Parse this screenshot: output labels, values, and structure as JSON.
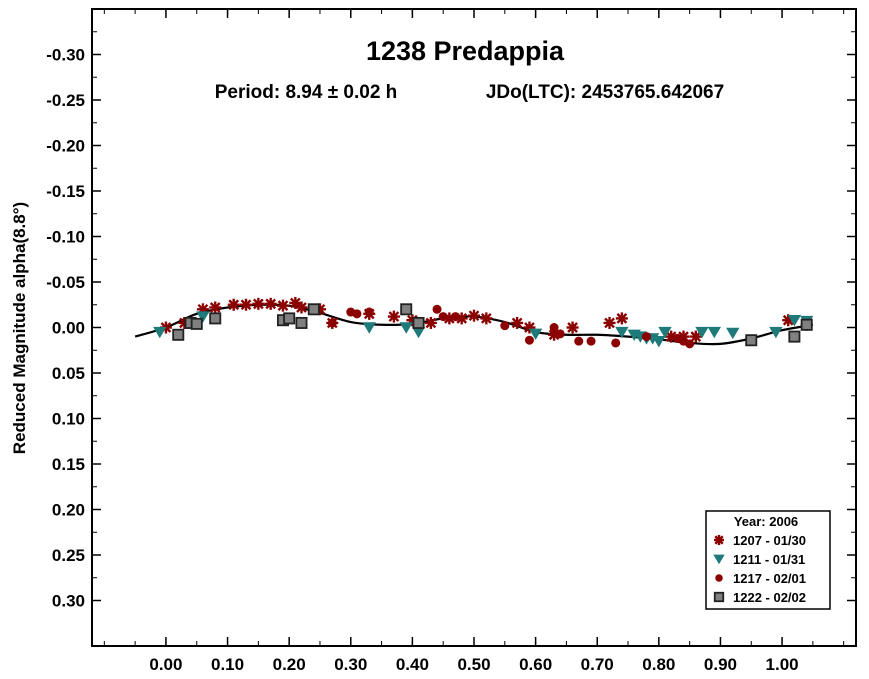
{
  "chart_data": {
    "type": "scatter",
    "title": "1238 Predappia",
    "subtitle_period": "Period: 8.94 ± 0.02 h",
    "subtitle_epoch": "JDo(LTC): 2453765.642067",
    "xlabel": "",
    "ylabel": "Reduced Magnitude alpha(8.8°)",
    "xlim": [
      -0.12,
      1.12
    ],
    "ylim": [
      0.35,
      -0.35
    ],
    "y_inverted": true,
    "x_ticks": [
      "0.00",
      "0.10",
      "0.20",
      "0.30",
      "0.40",
      "0.50",
      "0.60",
      "0.70",
      "0.80",
      "0.90",
      "1.00"
    ],
    "y_ticks": [
      "-0.30",
      "-0.25",
      "-0.20",
      "-0.15",
      "-0.10",
      "-0.05",
      "0.00",
      "0.05",
      "0.10",
      "0.15",
      "0.20",
      "0.25",
      "0.30"
    ],
    "grid": false,
    "legend_position": "bottom-right",
    "legend_title": "Year: 2006",
    "colors": {
      "dark_red": "#8b0000",
      "teal": "#1f7a7a",
      "gray": "#808080",
      "fit": "#000000"
    },
    "fit_curve": {
      "name": "",
      "x": [
        -0.05,
        0.0,
        0.05,
        0.1,
        0.15,
        0.2,
        0.25,
        0.3,
        0.35,
        0.4,
        0.45,
        0.5,
        0.55,
        0.6,
        0.65,
        0.7,
        0.75,
        0.8,
        0.85,
        0.9,
        0.95,
        1.0,
        1.05
      ],
      "y": [
        0.01,
        0.0,
        -0.015,
        -0.022,
        -0.025,
        -0.024,
        -0.016,
        -0.006,
        -0.003,
        -0.004,
        -0.01,
        -0.012,
        -0.006,
        0.005,
        0.008,
        0.008,
        0.01,
        0.013,
        0.017,
        0.018,
        0.012,
        0.003,
        -0.003
      ]
    },
    "series": [
      {
        "name": "1207 - 01/30",
        "marker": "asterisk",
        "color": "#8b0000",
        "x": [
          0.0,
          0.03,
          0.06,
          0.08,
          0.11,
          0.13,
          0.15,
          0.17,
          0.19,
          0.21,
          0.22,
          0.25,
          0.27,
          0.33,
          0.37,
          0.4,
          0.43,
          0.46,
          0.48,
          0.5,
          0.52,
          0.57,
          0.59,
          0.63,
          0.66,
          0.72,
          0.74,
          0.82,
          0.84,
          0.86,
          1.01,
          1.04
        ],
        "y": [
          0.0,
          -0.005,
          -0.02,
          -0.022,
          -0.025,
          -0.025,
          -0.026,
          -0.026,
          -0.024,
          -0.027,
          -0.022,
          -0.02,
          -0.005,
          -0.015,
          -0.012,
          -0.008,
          -0.005,
          -0.01,
          -0.01,
          -0.013,
          -0.01,
          -0.005,
          0.0,
          0.008,
          0.0,
          -0.005,
          -0.01,
          0.01,
          0.01,
          0.01,
          -0.008,
          -0.003
        ]
      },
      {
        "name": "1211 - 01/31",
        "marker": "triangle-down",
        "color": "#1f7a7a",
        "x": [
          -0.01,
          0.06,
          0.33,
          0.39,
          0.41,
          0.6,
          0.74,
          0.76,
          0.77,
          0.78,
          0.79,
          0.8,
          0.81,
          0.87,
          0.89,
          0.92,
          0.99,
          1.02,
          1.04
        ],
        "y": [
          0.005,
          -0.012,
          0.0,
          0.0,
          0.005,
          0.007,
          0.005,
          0.008,
          0.01,
          0.012,
          0.012,
          0.015,
          0.005,
          0.005,
          0.005,
          0.006,
          0.005,
          -0.008,
          -0.007
        ]
      },
      {
        "name": "1217 - 02/01",
        "marker": "circle",
        "color": "#8b0000",
        "x": [
          0.27,
          0.3,
          0.31,
          0.33,
          0.44,
          0.45,
          0.47,
          0.55,
          0.59,
          0.63,
          0.64,
          0.67,
          0.69,
          0.73,
          0.78,
          0.83,
          0.84,
          0.85
        ],
        "y": [
          -0.005,
          -0.017,
          -0.015,
          -0.017,
          -0.02,
          -0.012,
          -0.012,
          -0.002,
          0.014,
          0.0,
          0.007,
          0.015,
          0.015,
          0.017,
          0.01,
          0.012,
          0.015,
          0.018
        ]
      },
      {
        "name": "1222 - 02/02",
        "marker": "square",
        "color": "#808080",
        "x": [
          0.02,
          0.04,
          0.05,
          0.08,
          0.19,
          0.2,
          0.22,
          0.24,
          0.39,
          0.41,
          0.95,
          1.02,
          1.04
        ],
        "y": [
          0.008,
          -0.005,
          -0.004,
          -0.01,
          -0.008,
          -0.01,
          -0.005,
          -0.02,
          -0.02,
          -0.005,
          0.014,
          0.01,
          -0.003
        ]
      }
    ]
  }
}
